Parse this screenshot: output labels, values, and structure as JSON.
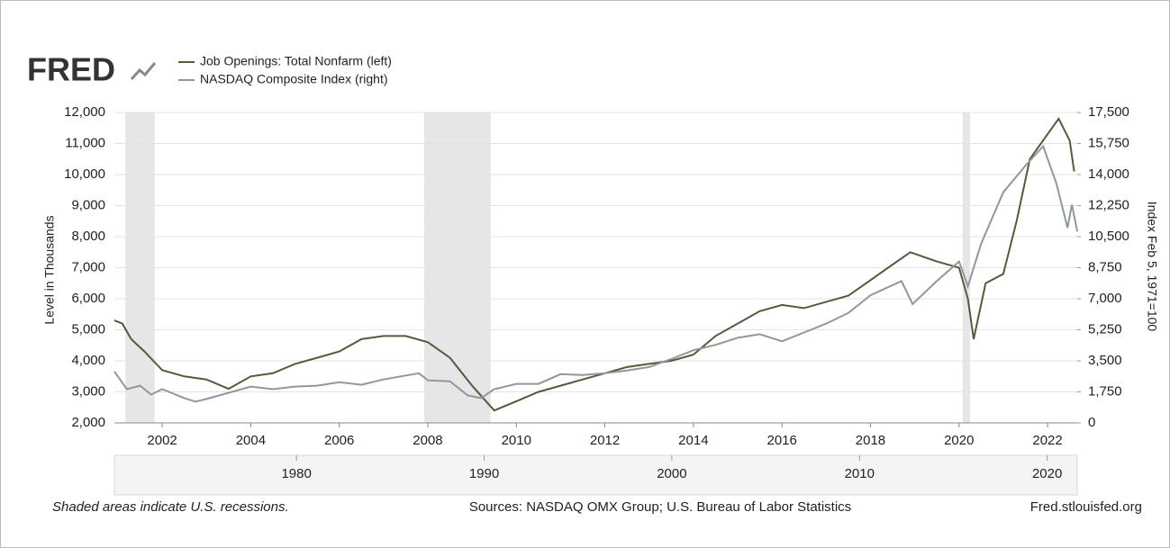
{
  "logo": "FRED",
  "chart_data": {
    "type": "line",
    "y_label": "Level in Thousands",
    "y2_label": "Index Feb 5, 1971=100",
    "xlim": [
      2000.92,
      2022.67
    ],
    "xticks": [
      2002,
      2004,
      2006,
      2008,
      2010,
      2012,
      2014,
      2016,
      2018,
      2020,
      2022
    ],
    "ylim": [
      2000,
      12000
    ],
    "yticks": [
      {
        "value": 2000,
        "label": "2,000"
      },
      {
        "value": 3000,
        "label": "3,000"
      },
      {
        "value": 4000,
        "label": "4,000"
      },
      {
        "value": 5000,
        "label": "5,000"
      },
      {
        "value": 6000,
        "label": "6,000"
      },
      {
        "value": 7000,
        "label": "7,000"
      },
      {
        "value": 8000,
        "label": "8,000"
      },
      {
        "value": 9000,
        "label": "9,000"
      },
      {
        "value": 10000,
        "label": "10,000"
      },
      {
        "value": 11000,
        "label": "11,000"
      },
      {
        "value": 12000,
        "label": "12,000"
      }
    ],
    "y2lim": [
      0,
      17500
    ],
    "y2ticks": [
      0,
      {
        "value": 1750,
        "label": "1,750"
      },
      {
        "value": 3500,
        "label": "3,500"
      },
      {
        "value": 5250,
        "label": "5,250"
      },
      {
        "value": 7000,
        "label": "7,000"
      },
      {
        "value": 8750,
        "label": "8,750"
      },
      {
        "value": 10500,
        "label": "10,500"
      },
      {
        "value": 12250,
        "label": "12,250"
      },
      {
        "value": 14000,
        "label": "14,000"
      },
      {
        "value": 15750,
        "label": "15,750"
      },
      {
        "value": 17500,
        "label": "17,500"
      }
    ],
    "grid": true,
    "recessions": [
      [
        2001.17,
        2001.83
      ],
      [
        2007.92,
        2009.42
      ],
      [
        2020.08,
        2020.25
      ]
    ],
    "overview_xlim": [
      1970.3,
      2021.6
    ],
    "overview_ticks": [
      1980,
      1990,
      2000,
      2010,
      2020
    ],
    "series": [
      {
        "name": "Job Openings: Total Nonfarm (left)",
        "color": "#58583f",
        "x": [
          2000.92,
          2001.1,
          2001.3,
          2001.6,
          2002.0,
          2002.5,
          2003.0,
          2003.5,
          2004.0,
          2004.5,
          2005.0,
          2005.5,
          2006.0,
          2006.5,
          2007.0,
          2007.5,
          2008.0,
          2008.5,
          2009.0,
          2009.5,
          2010.0,
          2010.5,
          2011.0,
          2011.5,
          2012.0,
          2012.5,
          2013.0,
          2013.5,
          2014.0,
          2014.5,
          2015.0,
          2015.5,
          2016.0,
          2016.5,
          2017.0,
          2017.5,
          2018.0,
          2018.5,
          2018.9,
          2019.5,
          2020.0,
          2020.2,
          2020.33,
          2020.6,
          2021.0,
          2021.3,
          2021.6,
          2022.0,
          2022.25,
          2022.5,
          2022.6
        ],
        "values": [
          5300,
          5200,
          4700,
          4300,
          3700,
          3500,
          3400,
          3100,
          3500,
          3600,
          3900,
          4100,
          4300,
          4700,
          4800,
          4800,
          4600,
          4100,
          3200,
          2400,
          2700,
          3000,
          3200,
          3400,
          3600,
          3800,
          3900,
          4000,
          4200,
          4800,
          5200,
          5600,
          5800,
          5700,
          5900,
          6100,
          6600,
          7100,
          7500,
          7200,
          7000,
          6000,
          4700,
          6500,
          6800,
          8500,
          10500,
          11300,
          11800,
          11100,
          10100
        ]
      },
      {
        "name": "NASDAQ Composite Index (right)",
        "color": "#8f9999",
        "axis": "y2",
        "x": [
          2000.92,
          2001.2,
          2001.5,
          2001.75,
          2002.0,
          2002.5,
          2002.75,
          2003.0,
          2003.5,
          2004.0,
          2004.5,
          2005.0,
          2005.5,
          2006.0,
          2006.5,
          2007.0,
          2007.8,
          2008.0,
          2008.5,
          2008.9,
          2009.2,
          2009.5,
          2010.0,
          2010.5,
          2011.0,
          2011.5,
          2012.0,
          2012.5,
          2013.0,
          2013.5,
          2014.0,
          2014.5,
          2015.0,
          2015.5,
          2016.0,
          2016.5,
          2017.0,
          2017.5,
          2018.0,
          2018.7,
          2018.95,
          2019.5,
          2020.0,
          2020.2,
          2020.5,
          2021.0,
          2021.5,
          2021.9,
          2022.2,
          2022.45,
          2022.55,
          2022.67
        ],
        "values": [
          2900,
          1900,
          2100,
          1600,
          1900,
          1400,
          1200,
          1350,
          1700,
          2050,
          1900,
          2050,
          2100,
          2300,
          2150,
          2450,
          2800,
          2400,
          2350,
          1550,
          1400,
          1900,
          2200,
          2200,
          2750,
          2700,
          2800,
          2950,
          3150,
          3600,
          4100,
          4400,
          4800,
          5000,
          4600,
          5100,
          5600,
          6200,
          7200,
          8000,
          6700,
          8000,
          9100,
          7700,
          10100,
          13000,
          14500,
          15600,
          13500,
          11000,
          12300,
          10800
        ]
      }
    ]
  },
  "footer": {
    "note": "Shaded areas indicate U.S. recessions.",
    "sources": "Sources: NASDAQ OMX Group; U.S. Bureau of Labor Statistics",
    "site": "Fred.stlouisfed.org"
  }
}
